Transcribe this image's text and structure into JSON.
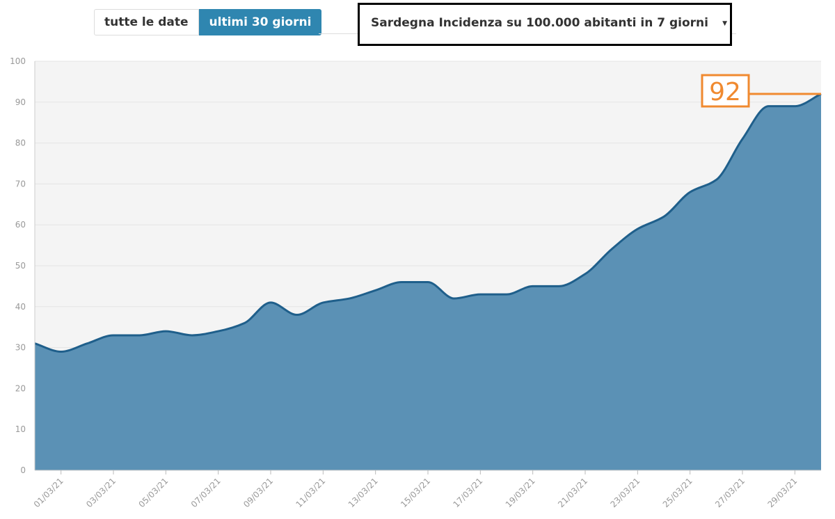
{
  "controls": {
    "tab_all": "tutte le date",
    "tab_30": "ultimi 30 giorni",
    "select_value": "Sardegna Incidenza su 100.000 abitanti in 7 giorni",
    "caret_icon": "triangle-down"
  },
  "colors": {
    "accent": "#2f86b0",
    "area_fill": "#5b91b5",
    "area_line": "#1f5f8b",
    "plot_bg": "#f4f4f4",
    "highlight": "#f08a30"
  },
  "chart_data": {
    "type": "area",
    "x": [
      "28/02/21",
      "01/03/21",
      "02/03/21",
      "03/03/21",
      "04/03/21",
      "05/03/21",
      "06/03/21",
      "07/03/21",
      "08/03/21",
      "09/03/21",
      "10/03/21",
      "11/03/21",
      "12/03/21",
      "13/03/21",
      "14/03/21",
      "15/03/21",
      "16/03/21",
      "17/03/21",
      "18/03/21",
      "19/03/21",
      "20/03/21",
      "21/03/21",
      "22/03/21",
      "23/03/21",
      "24/03/21",
      "25/03/21",
      "26/03/21",
      "27/03/21",
      "28/03/21",
      "29/03/21",
      "30/03/21"
    ],
    "series": [
      {
        "values": [
          31,
          29,
          31,
          33,
          33,
          34,
          33,
          34,
          36,
          41,
          38,
          41,
          42,
          44,
          46,
          46,
          42,
          43,
          43,
          45,
          45,
          48,
          54,
          59,
          62,
          68,
          71,
          81,
          89,
          89,
          92
        ]
      }
    ],
    "x_tick_labels": [
      "01/03/21",
      "03/03/21",
      "05/03/21",
      "07/03/21",
      "09/03/21",
      "11/03/21",
      "13/03/21",
      "15/03/21",
      "17/03/21",
      "19/03/21",
      "21/03/21",
      "23/03/21",
      "25/03/21",
      "27/03/21",
      "29/03/21"
    ],
    "y_ticks": [
      0,
      10,
      20,
      30,
      40,
      50,
      60,
      70,
      80,
      90,
      100
    ],
    "ylim": [
      0,
      100
    ],
    "grid": true,
    "last_value_label": "92",
    "title": "",
    "xlabel": "",
    "ylabel": ""
  }
}
